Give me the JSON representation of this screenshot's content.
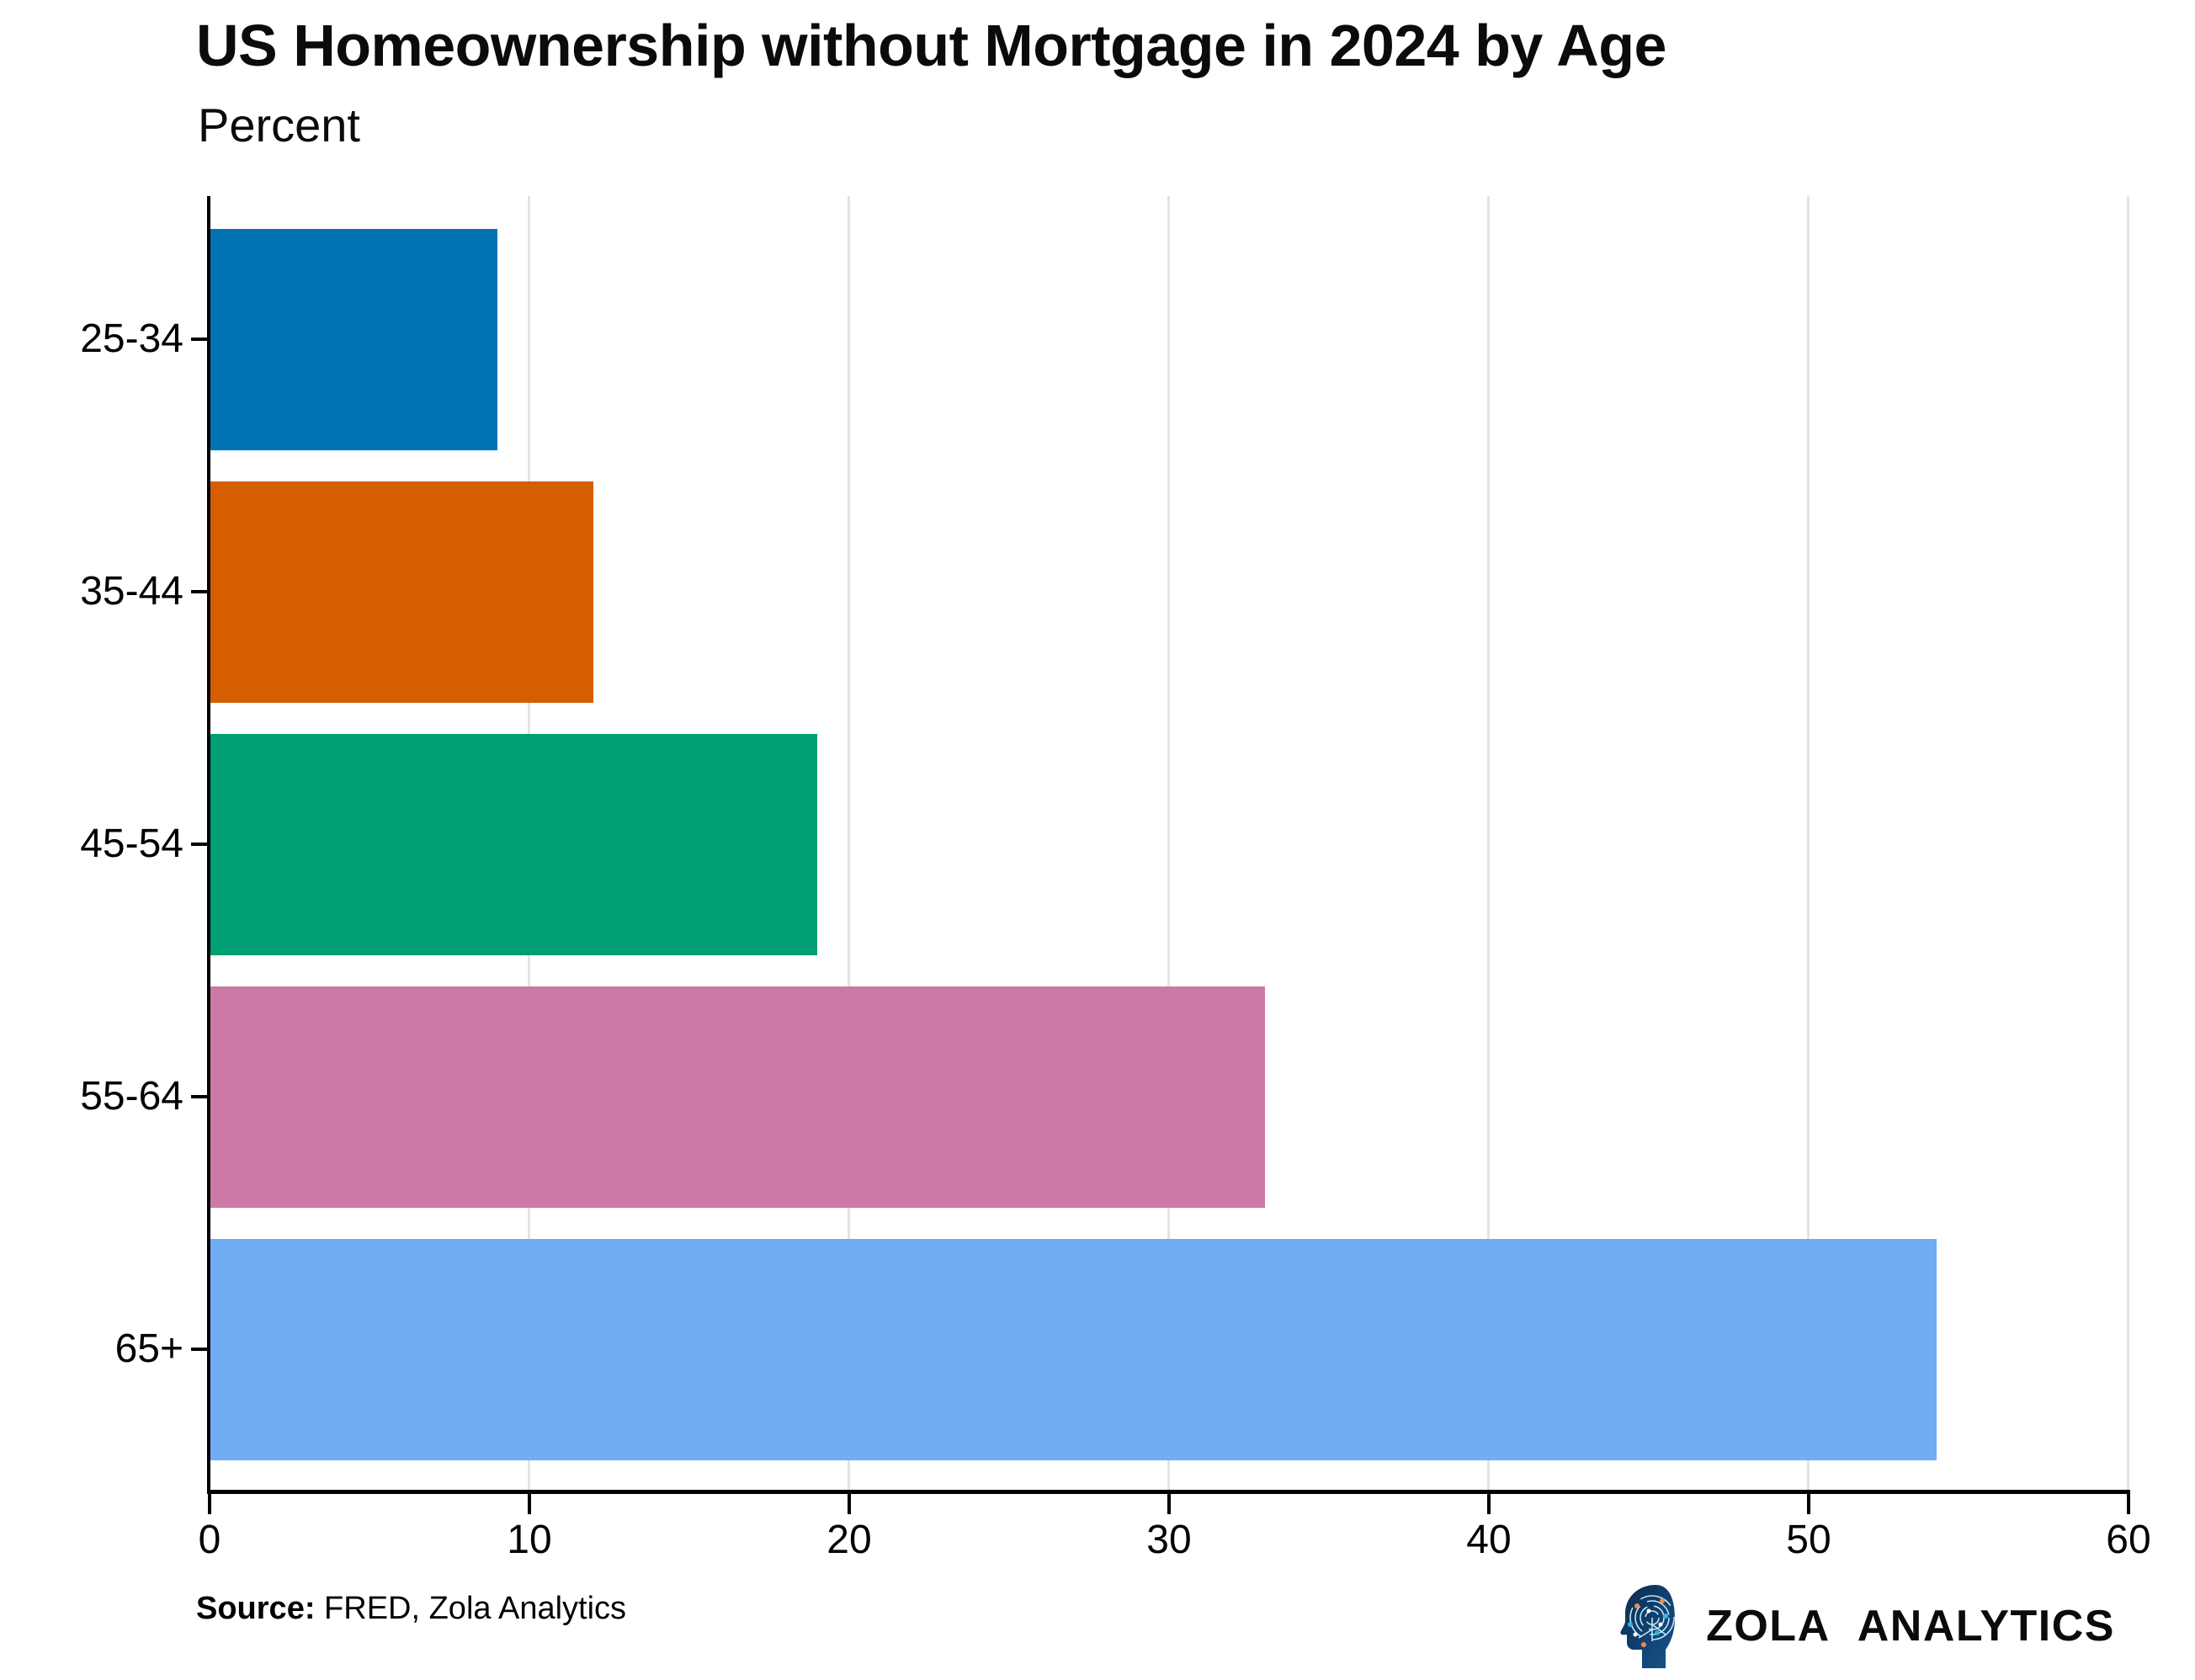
{
  "title": "US Homeownership without Mortgage in 2024 by Age",
  "subtitle": "Percent",
  "source": {
    "label": "Source:",
    "text": " FRED, Zola Analytics"
  },
  "branding": {
    "name": "ZOLA ANALYTICS",
    "icon": "circuit-head-icon"
  },
  "colors": {
    "grid": "#e3e3e3",
    "axis": "#000000",
    "background": "#ffffff",
    "logo_navy": "#0d3158"
  },
  "chart_data": {
    "type": "bar",
    "orientation": "horizontal",
    "title": "US Homeownership without Mortgage in 2024 by Age",
    "xlabel": "",
    "ylabel": "Percent",
    "categories": [
      "25-34",
      "35-44",
      "45-54",
      "55-64",
      "65+"
    ],
    "values": [
      9,
      12,
      19,
      33,
      54
    ],
    "bar_colors": [
      "#0172B2",
      "#D55E00",
      "#009E73",
      "#CC79A7",
      "#70ADF5"
    ],
    "xlim": [
      0,
      60
    ],
    "xticks": [
      0,
      10,
      20,
      30,
      40,
      50,
      60
    ],
    "grid": "vertical-only",
    "legend": "none"
  }
}
